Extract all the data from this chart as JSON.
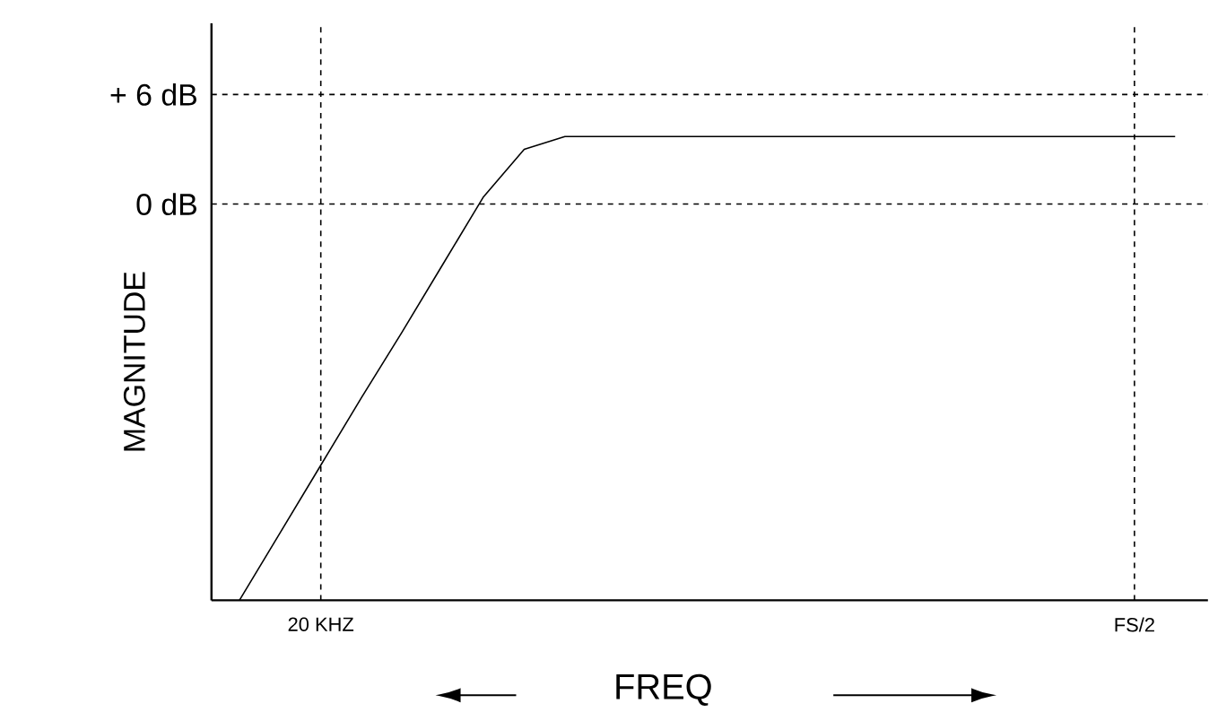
{
  "chart_data": {
    "type": "line",
    "xlabel": "FREQ",
    "ylabel": "MAGNITUDE",
    "categories": [
      null,
      null,
      "20 KHZ",
      null,
      null,
      null,
      null,
      null,
      null,
      null,
      null,
      null,
      null,
      null,
      null,
      null,
      null,
      null,
      null,
      null,
      null,
      null,
      "FS/2",
      null
    ],
    "series": [
      {
        "color": "#000000",
        "values": [
          -21.7,
          -18.0,
          -14.3,
          -10.6,
          -7.0,
          -3.3,
          0.4,
          3.0,
          3.7,
          3.7,
          3.7,
          3.7,
          3.7,
          3.7,
          3.7,
          3.7,
          3.7,
          3.7,
          3.7,
          3.7,
          3.7,
          3.7,
          3.7,
          3.7
        ]
      }
    ],
    "ylim": [
      -21.7,
      9.9
    ],
    "yticks": [
      {
        "value": 6,
        "label": "+ 6 dB"
      },
      {
        "value": 0,
        "label": "0 dB"
      }
    ],
    "grid": true,
    "marker": "none",
    "line_style": "solid"
  }
}
